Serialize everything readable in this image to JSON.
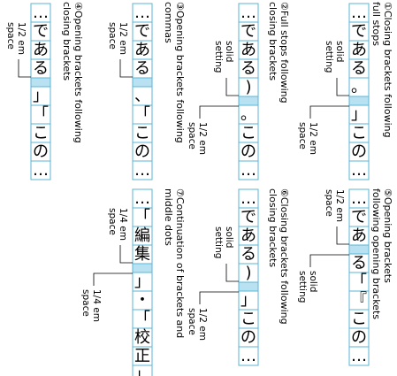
{
  "examples": [
    {
      "id": "ex1",
      "caption_lines": [
        "①Closing brackets following",
        "full stops"
      ],
      "glyphs": [
        "…",
        "で",
        "あ",
        "る",
        "。",
        "」",
        "こ",
        "の",
        "…"
      ],
      "space_after_index": 5,
      "annotations": [
        {
          "lines": [
            "solid",
            "setting"
          ]
        },
        {
          "lines": [
            "1/2 em",
            "space"
          ]
        }
      ]
    },
    {
      "id": "ex2",
      "caption_lines": [
        "②Full stops following",
        "closing brackets"
      ],
      "glyphs": [
        "…",
        "で",
        "あ",
        "る",
        ")",
        "。",
        "こ",
        "の",
        "…"
      ],
      "space_after_index": 5,
      "annotations": [
        {
          "lines": [
            "solid",
            "setting"
          ]
        },
        {
          "lines": [
            "1/2 em",
            "space"
          ]
        }
      ]
    },
    {
      "id": "ex3",
      "caption_lines": [
        "③Opening brackets following",
        "commas"
      ],
      "glyphs": [
        "…",
        "で",
        "あ",
        "る",
        "、",
        "「",
        "こ",
        "の",
        "…"
      ],
      "space_after_index": 4,
      "annotations": [
        {
          "lines": [
            "1/2 em",
            "space"
          ]
        }
      ]
    },
    {
      "id": "ex4",
      "caption_lines": [
        "④Opening brackets following",
        "closing brackets"
      ],
      "glyphs": [
        "…",
        "で",
        "あ",
        "る",
        "」",
        "「",
        "こ",
        "の",
        "…"
      ],
      "space_after_index": 4,
      "annotations": [
        {
          "lines": [
            "1/2 em",
            "space"
          ]
        }
      ]
    },
    {
      "id": "ex5",
      "caption_lines": [
        "⑤Opening brackets",
        "following opening brackets"
      ],
      "glyphs": [
        "…",
        "で",
        "あ",
        "る",
        "「",
        "『",
        "こ",
        "の",
        "…"
      ],
      "space_after_index": 3,
      "annotations": [
        {
          "lines": [
            "1/2 em",
            "space"
          ]
        },
        {
          "lines": [
            "solid",
            "setting"
          ]
        }
      ]
    },
    {
      "id": "ex6",
      "caption_lines": [
        "⑥Closing brackets following",
        "closing brackets"
      ],
      "glyphs": [
        "…",
        "で",
        "あ",
        "る",
        ")",
        "」",
        "こ",
        "の",
        "…"
      ],
      "space_after_index": 5,
      "annotations": [
        {
          "lines": [
            "solid",
            "setting"
          ]
        },
        {
          "lines": [
            "1/2 em",
            "space"
          ]
        }
      ]
    },
    {
      "id": "ex7",
      "caption_lines": [
        "⑦Continuation of brackets and",
        "middle dots"
      ],
      "glyphs": [
        "…",
        "「",
        "編",
        "集",
        "」",
        "・",
        "「",
        "校",
        "正",
        "」"
      ],
      "space_after_index": 4,
      "annotations": [
        {
          "lines": [
            "1/4 em",
            "space"
          ]
        },
        {
          "lines": [
            "1/4 em",
            "space"
          ]
        }
      ]
    }
  ],
  "palette": {
    "box_stroke": "#5bb6d6",
    "space_fill": "#b8e2f2",
    "text": "#000000"
  }
}
